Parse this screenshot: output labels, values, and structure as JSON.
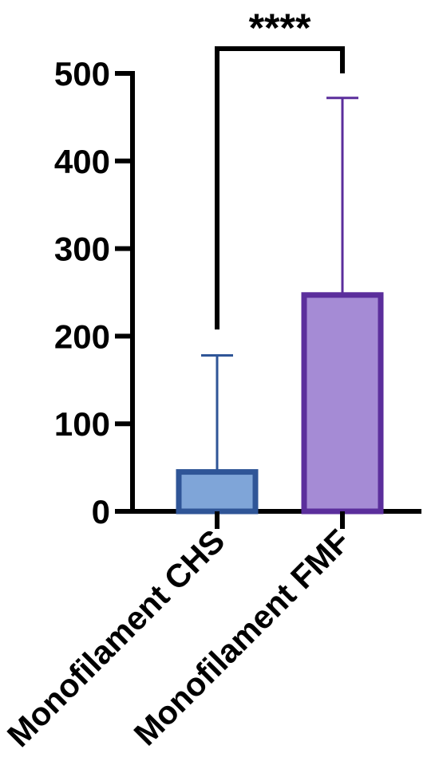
{
  "chart_data": {
    "type": "bar",
    "title": "",
    "xlabel": "",
    "ylabel": "",
    "ylim": [
      0,
      500
    ],
    "yticks": [
      0,
      100,
      200,
      300,
      400,
      500
    ],
    "grid": false,
    "categories": [
      "Monofilament CHS",
      "Monofilament FMF"
    ],
    "values": [
      45,
      247
    ],
    "error_upper": [
      178,
      472
    ],
    "fill_colors": [
      "#7fa5d8",
      "#a58bd5"
    ],
    "edge_colors": [
      "#2f5597",
      "#5b2e9c"
    ],
    "significance": {
      "label": "****",
      "between": [
        "Monofilament CHS",
        "Monofilament FMF"
      ]
    }
  }
}
